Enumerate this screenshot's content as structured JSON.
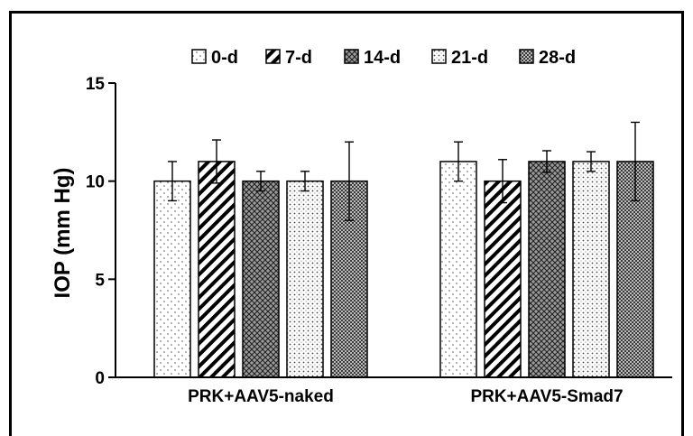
{
  "chart_data": {
    "type": "bar",
    "title": "",
    "xlabel": "",
    "ylabel": "IOP (mm Hg)",
    "ylim": [
      0,
      15
    ],
    "yticks": [
      "0",
      "5",
      "10",
      "15"
    ],
    "categories": [
      "PRK+AAV5-naked",
      "PRK+AAV5-Smad7"
    ],
    "legend_position": "top",
    "series": [
      {
        "name": "0-d",
        "pattern": "dots-sparse",
        "values": [
          10,
          11
        ],
        "errors": [
          1.0,
          1.0
        ]
      },
      {
        "name": "7-d",
        "pattern": "diagonal-stripes",
        "values": [
          11,
          10
        ],
        "errors": [
          1.1,
          1.1
        ]
      },
      {
        "name": "14-d",
        "pattern": "crosshatch",
        "values": [
          10,
          11
        ],
        "errors": [
          0.5,
          0.55
        ]
      },
      {
        "name": "21-d",
        "pattern": "dots-medium",
        "values": [
          10,
          11
        ],
        "errors": [
          0.5,
          0.5
        ]
      },
      {
        "name": "28-d",
        "pattern": "dots-dense",
        "values": [
          10,
          11
        ],
        "errors": [
          2.0,
          2.0
        ]
      }
    ],
    "grid": false
  }
}
